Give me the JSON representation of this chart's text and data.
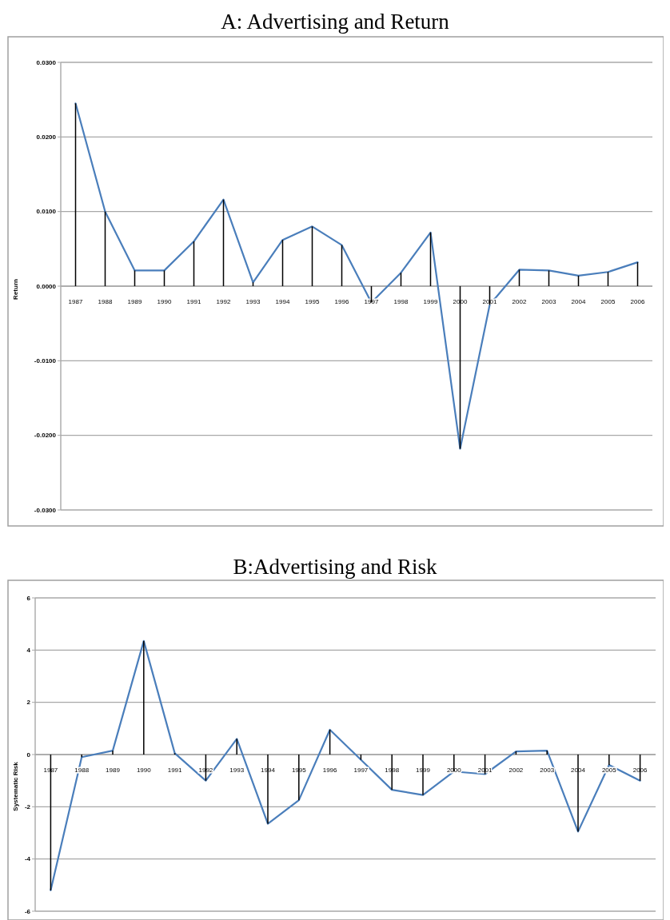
{
  "chart_data": [
    {
      "type": "line",
      "title": "A: Advertising and Return",
      "ylabel": "Return",
      "categories": [
        "1987",
        "1988",
        "1989",
        "1990",
        "1991",
        "1992",
        "1993",
        "1994",
        "1995",
        "1996",
        "1997",
        "1998",
        "1999",
        "2000",
        "2001",
        "2002",
        "2003",
        "2004",
        "2005",
        "2006"
      ],
      "series": [
        {
          "type": "bar",
          "color": "#000000",
          "values": [
            0.0245,
            0.01,
            0.0021,
            0.0021,
            0.006,
            0.0116,
            0.0005,
            0.0062,
            0.008,
            0.0055,
            -0.0022,
            0.0018,
            0.0072,
            -0.0218,
            -0.0025,
            0.0022,
            0.0021,
            0.0014,
            0.0019,
            0.0032
          ]
        },
        {
          "type": "line",
          "color": "#4a7ebb",
          "values": [
            0.0245,
            0.01,
            0.0021,
            0.0021,
            0.006,
            0.0116,
            0.0005,
            0.0062,
            0.008,
            0.0055,
            -0.0022,
            0.0018,
            0.0072,
            -0.0218,
            -0.0025,
            0.0022,
            0.0021,
            0.0014,
            0.0019,
            0.0032
          ]
        }
      ],
      "ylim": [
        -0.03,
        0.03
      ],
      "yticks": [
        {
          "value": -0.03,
          "label": "-0.0300"
        },
        {
          "value": -0.02,
          "label": "-0.0200"
        },
        {
          "value": -0.01,
          "label": "-0.0100"
        },
        {
          "value": 0,
          "label": "0.0000"
        },
        {
          "value": 0.01,
          "label": "0.0100"
        },
        {
          "value": 0.02,
          "label": "0.0200"
        },
        {
          "value": 0.03,
          "label": "0.0300"
        }
      ],
      "grid": "y"
    },
    {
      "type": "line",
      "title": "B:Advertising and Risk",
      "ylabel": "Systematic Risk",
      "categories": [
        "1987",
        "1988",
        "1989",
        "1990",
        "1991",
        "1992",
        "1993",
        "1994",
        "1995",
        "1996",
        "1997",
        "1998",
        "1999",
        "2000",
        "2001",
        "2002",
        "2003",
        "2004",
        "2005",
        "2006"
      ],
      "series": [
        {
          "type": "bar",
          "color": "#000000",
          "values": [
            -5.2,
            -0.1,
            0.15,
            4.35,
            0.05,
            -1.0,
            0.6,
            -2.65,
            -1.75,
            0.95,
            -0.2,
            -1.35,
            -1.55,
            -0.65,
            -0.75,
            0.12,
            0.15,
            -2.95,
            -0.4,
            -1.0
          ]
        },
        {
          "type": "line",
          "color": "#4a7ebb",
          "values": [
            -5.2,
            -0.1,
            0.15,
            4.35,
            0.05,
            -1.0,
            0.6,
            -2.65,
            -1.75,
            0.95,
            -0.2,
            -1.35,
            -1.55,
            -0.65,
            -0.75,
            0.12,
            0.15,
            -2.95,
            -0.4,
            -1.0
          ]
        }
      ],
      "ylim": [
        -6,
        6
      ],
      "yticks": [
        -6,
        -4,
        -2,
        0,
        2,
        4,
        6
      ],
      "grid": "y"
    }
  ]
}
